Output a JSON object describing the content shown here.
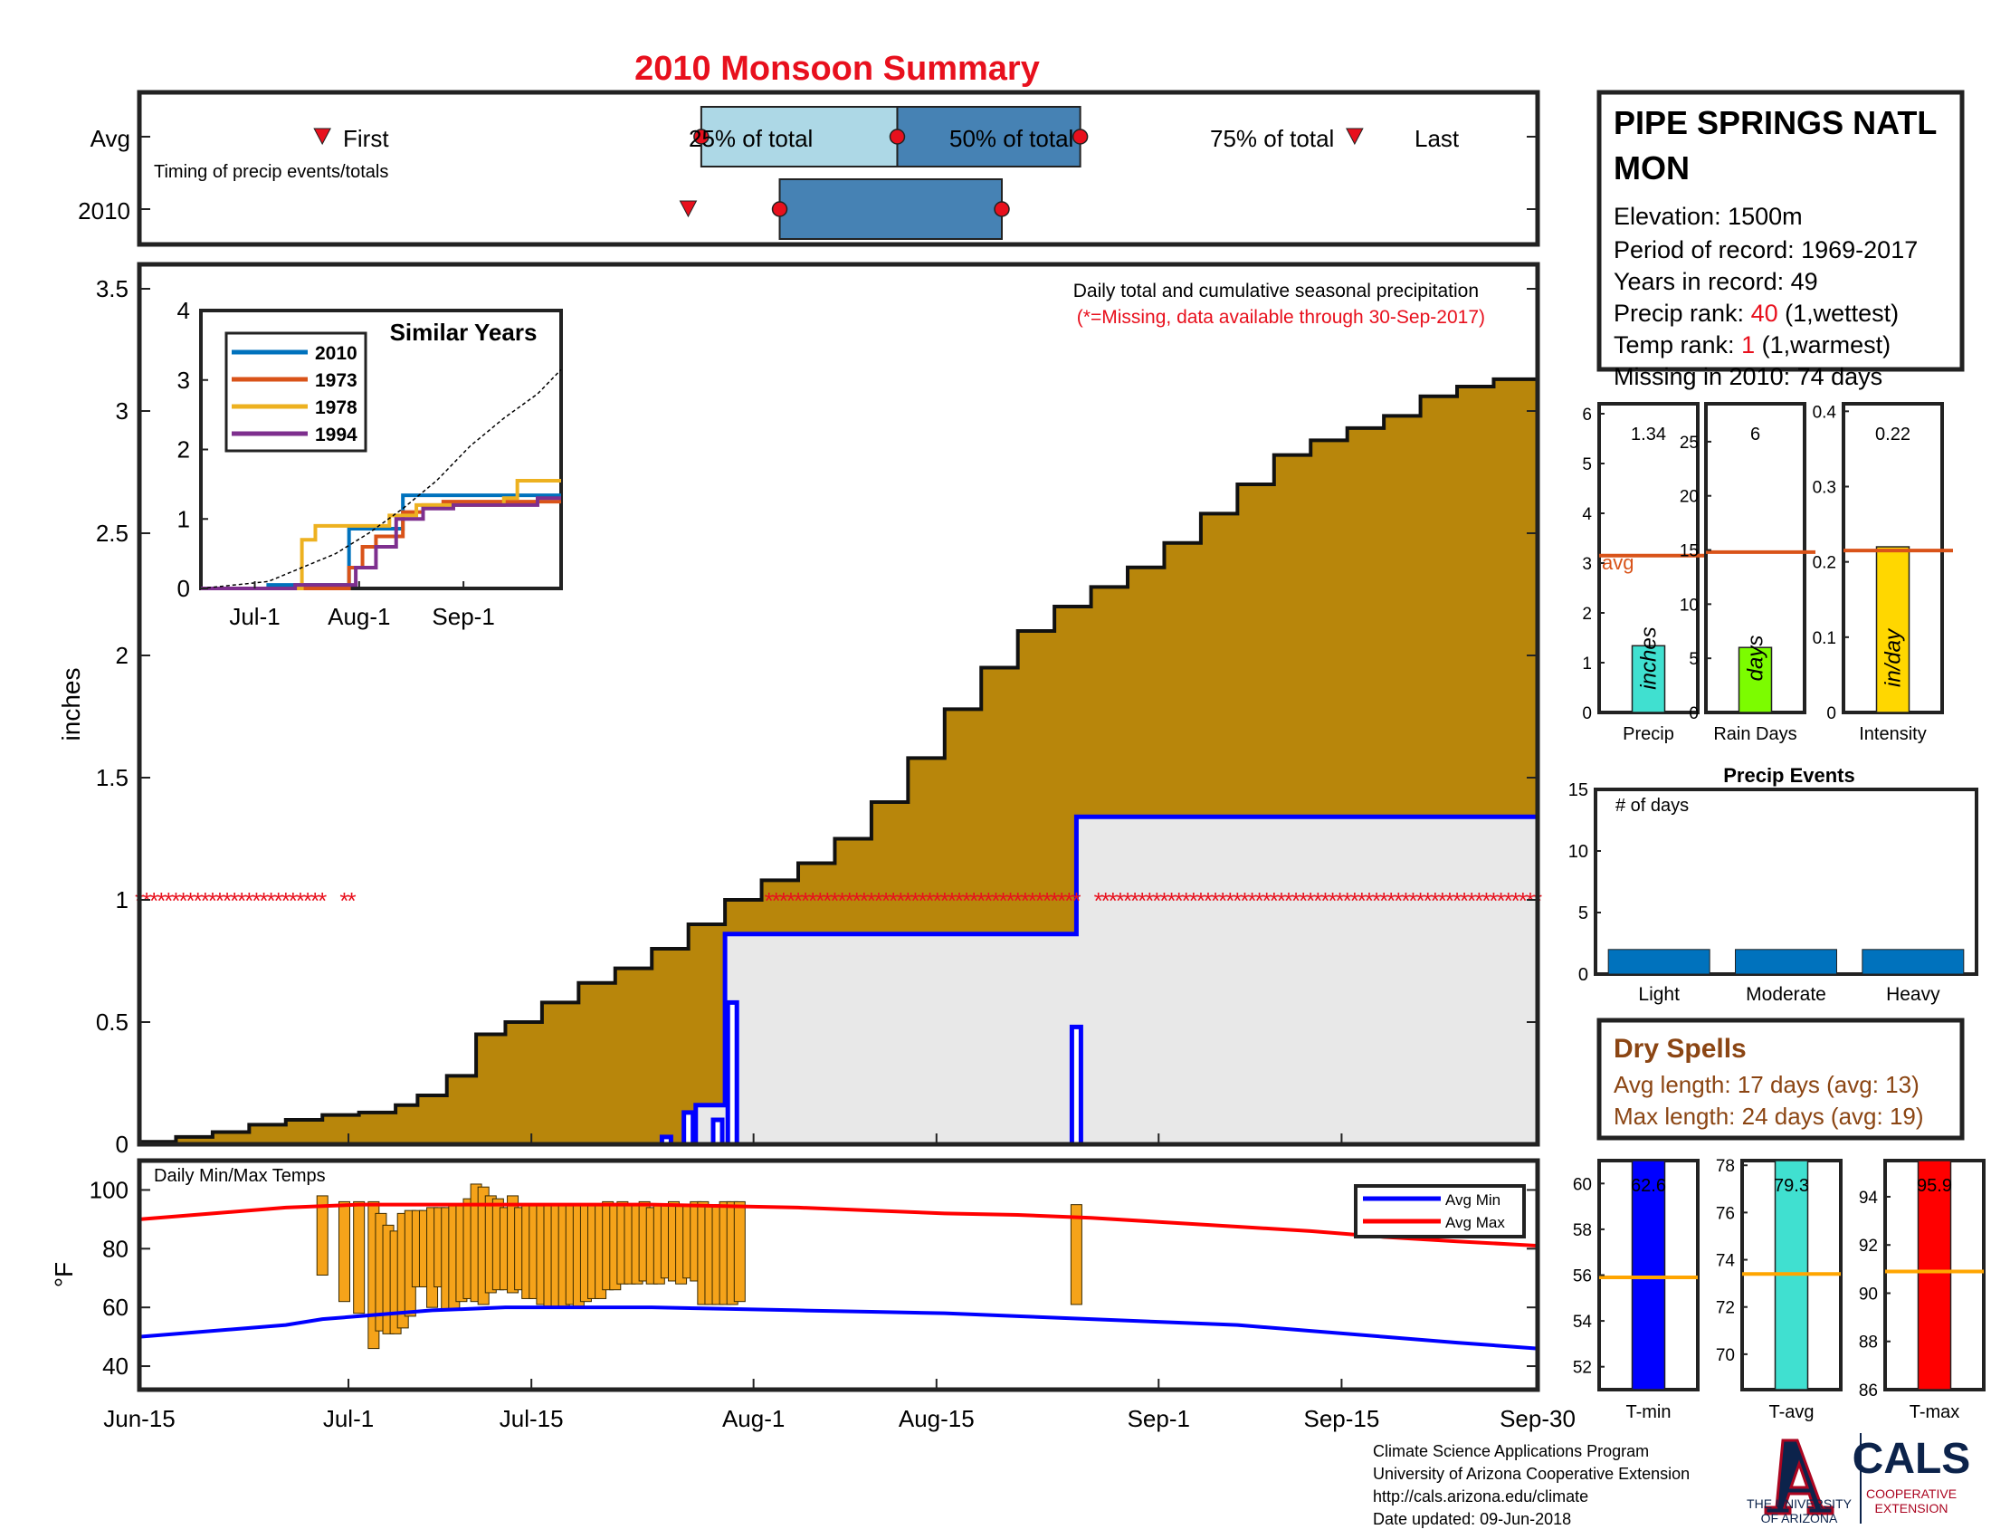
{
  "title": "2010 Monsoon Summary",
  "timing": {
    "row_labels": [
      "Avg",
      "2010"
    ],
    "caption": "Timing of precip events/totals",
    "first_label": "First",
    "last_label": "Last",
    "p25_label": "25% of total",
    "p50_label": "50% of total",
    "p75_label": "75% of total",
    "avg": {
      "first": "Jun-29",
      "p25": "Jul-28",
      "p50": "Aug-12",
      "p75": "Aug-26",
      "last": "Sep-16"
    },
    "y2010": {
      "first": "Jul-27",
      "p25": "Aug-3",
      "p75": "Aug-20"
    }
  },
  "info": {
    "station": "PIPE SPRINGS NATL MON",
    "station_line1": "PIPE SPRINGS NATL",
    "station_line2": "MON",
    "elevation": "Elevation: 1500m",
    "period": "Period of record: 1969-2017",
    "years": "Years in record: 49",
    "precip_rank_prefix": "Precip rank: ",
    "precip_rank_value": "40",
    "precip_rank_suffix": " (1,wettest)",
    "temp_rank_prefix": "Temp rank: ",
    "temp_rank_value": "1",
    "temp_rank_suffix": " (1,warmest)",
    "missing": "Missing in 2010: 74 days"
  },
  "main_panel": {
    "ylabel": "inches",
    "legend_line1": "Daily total and cumulative seasonal precipitation",
    "legend_line2": "(*=Missing, data available through 30-Sep-2017)",
    "inset_title": "Similar Years"
  },
  "temp_panel": {
    "title": "Daily Min/Max Temps",
    "ylabel": "°F",
    "legend_min": "Avg Min",
    "legend_max": "Avg Max"
  },
  "x_axis_ticks": [
    "Jun-15",
    "Jul-1",
    "Jul-15",
    "Aug-1",
    "Aug-15",
    "Sep-1",
    "Sep-15",
    "Sep-30"
  ],
  "precip_bar": {
    "label": "Precip",
    "value": 1.34,
    "value_text": "1.34",
    "avg_text": "avg",
    "unit": "inches",
    "avg": 3.15,
    "ymax": 6.2,
    "color": "#40e0d0"
  },
  "raindays_bar": {
    "label": "Rain Days",
    "value": 6,
    "value_text": "6",
    "unit": "days",
    "avg": 14.8,
    "ymax": 28.5,
    "color": "#7cfc00"
  },
  "intensity_bar": {
    "label": "Intensity",
    "value": 0.22,
    "value_text": "0.22",
    "unit": "in/day",
    "avg": 0.215,
    "ymax": 0.41,
    "color": "#ffd700"
  },
  "precip_events": {
    "title": "Precip Events",
    "ylabel": "# of days",
    "categories": [
      "Light",
      "Moderate",
      "Heavy"
    ],
    "values": [
      2,
      2,
      2
    ],
    "ylim": [
      0,
      15
    ]
  },
  "dry_spells": {
    "title": "Dry Spells",
    "avg_line": "Avg length: 17 days (avg: 13)",
    "max_line": "Max length: 24 days (avg: 19)"
  },
  "temp_bars": [
    {
      "label": "T-min",
      "value": 62.6,
      "value_text": "62.6",
      "avg": 55.9,
      "ylim": [
        51,
        61
      ],
      "ticks": [
        52,
        54,
        56,
        58,
        60
      ],
      "color": "#0000ff"
    },
    {
      "label": "T-avg",
      "value": 79.3,
      "value_text": "79.3",
      "avg": 73.4,
      "ylim": [
        68.5,
        78.2
      ],
      "ticks": [
        70,
        72,
        74,
        76,
        78
      ],
      "color": "#40e0d0"
    },
    {
      "label": "T-max",
      "value": 95.9,
      "value_text": "95.9",
      "avg": 90.9,
      "ylim": [
        86,
        95.5
      ],
      "ticks": [
        86,
        88,
        90,
        92,
        94
      ],
      "color": "#ff0000"
    }
  ],
  "footer": {
    "line1": "Climate Science Applications Program",
    "line2": "University of Arizona Cooperative Extension",
    "line3": "http://cals.arizona.edu/climate",
    "line4": " Date updated: 09-Jun-2018",
    "ua_logo_text1": "THE UNIVERSITY",
    "ua_logo_text2": "OF ARIZONA",
    "cals_logo_text": "CALS",
    "cals_sub1": "COOPERATIVE",
    "cals_sub2": "EXTENSION"
  },
  "chart_data": [
    {
      "type": "area",
      "title": "Daily total and cumulative seasonal precipitation",
      "ylabel": "inches",
      "xlabel": "",
      "x_range": [
        "Jun-15",
        "Sep-30"
      ],
      "ylim": [
        0,
        3.6
      ],
      "yticks": [
        0,
        0.5,
        1,
        1.5,
        2,
        2.5,
        3,
        3.5
      ],
      "series": [
        {
          "name": "avg_cumulative",
          "color": "#b8860b",
          "points": [
            [
              0,
              0.01
            ],
            [
              5,
              0.03
            ],
            [
              10,
              0.05
            ],
            [
              15,
              0.08
            ],
            [
              20,
              0.1
            ],
            [
              25,
              0.12
            ],
            [
              30,
              0.13
            ],
            [
              35,
              0.16
            ],
            [
              38,
              0.2
            ],
            [
              42,
              0.28
            ],
            [
              46,
              0.45
            ],
            [
              50,
              0.5
            ],
            [
              55,
              0.58
            ],
            [
              60,
              0.66
            ],
            [
              65,
              0.72
            ],
            [
              70,
              0.8
            ],
            [
              75,
              0.9
            ],
            [
              80,
              1.0
            ],
            [
              85,
              1.08
            ],
            [
              90,
              1.15
            ],
            [
              95,
              1.25
            ],
            [
              100,
              1.4
            ],
            [
              105,
              1.58
            ],
            [
              110,
              1.78
            ],
            [
              115,
              1.95
            ],
            [
              120,
              2.1
            ],
            [
              125,
              2.2
            ],
            [
              130,
              2.28
            ],
            [
              135,
              2.36
            ],
            [
              140,
              2.46
            ],
            [
              145,
              2.58
            ],
            [
              150,
              2.7
            ],
            [
              155,
              2.82
            ],
            [
              160,
              2.88
            ],
            [
              165,
              2.93
            ],
            [
              170,
              2.98
            ],
            [
              175,
              3.06
            ],
            [
              180,
              3.1
            ],
            [
              185,
              3.13
            ],
            [
              191,
              3.14
            ]
          ]
        },
        {
          "name": "2010_cumulative",
          "color": "#0000ff",
          "points": [
            [
              68,
              0
            ],
            [
              75,
              0
            ],
            [
              75,
              0.01
            ],
            [
              76,
              0.01
            ],
            [
              76,
              0.16
            ],
            [
              80,
              0.16
            ],
            [
              80,
              0.86
            ],
            [
              128,
              0.86
            ],
            [
              128,
              1.34
            ],
            [
              191,
              1.34
            ]
          ]
        }
      ],
      "daily_2010": [
        {
          "day": 72,
          "value": 0.03
        },
        {
          "day": 75,
          "value": 0.13
        },
        {
          "day": 79,
          "value": 0.1
        },
        {
          "day": 81,
          "value": 0.58
        },
        {
          "day": 128,
          "value": 0.48
        }
      ],
      "missing_marker_value": 1,
      "missing_ranges": [
        [
          0,
          25
        ],
        [
          28,
          29
        ],
        [
          86,
          128
        ],
        [
          131,
          191
        ]
      ]
    },
    {
      "type": "line",
      "title": "Similar Years",
      "x_ticks": [
        "Jul-1",
        "Aug-1",
        "Sep-1"
      ],
      "ylim": [
        0,
        4
      ],
      "yticks": [
        0,
        1,
        2,
        3,
        4
      ],
      "series": [
        {
          "name": "2010",
          "color": "#0072bd",
          "points": [
            [
              0,
              0
            ],
            [
              20,
              0
            ],
            [
              20,
              0.05
            ],
            [
              44,
              0.05
            ],
            [
              44,
              0.86
            ],
            [
              60,
              0.86
            ],
            [
              60,
              1.34
            ],
            [
              107,
              1.34
            ]
          ]
        },
        {
          "name": "1973",
          "color": "#d95319",
          "points": [
            [
              0,
              0
            ],
            [
              44,
              0
            ],
            [
              44,
              0.3
            ],
            [
              48,
              0.3
            ],
            [
              48,
              0.6
            ],
            [
              52,
              0.6
            ],
            [
              52,
              0.75
            ],
            [
              60,
              0.75
            ],
            [
              60,
              1.1
            ],
            [
              66,
              1.1
            ],
            [
              66,
              1.2
            ],
            [
              72,
              1.2
            ],
            [
              72,
              1.25
            ],
            [
              107,
              1.25
            ]
          ]
        },
        {
          "name": "1978",
          "color": "#edb120",
          "points": [
            [
              0,
              0
            ],
            [
              30,
              0
            ],
            [
              30,
              0.7
            ],
            [
              34,
              0.7
            ],
            [
              34,
              0.9
            ],
            [
              56,
              0.9
            ],
            [
              56,
              1.05
            ],
            [
              64,
              1.05
            ],
            [
              64,
              1.2
            ],
            [
              90,
              1.2
            ],
            [
              90,
              1.3
            ],
            [
              94,
              1.3
            ],
            [
              94,
              1.55
            ],
            [
              107,
              1.55
            ]
          ]
        },
        {
          "name": "1994",
          "color": "#7e2f8e",
          "points": [
            [
              0,
              0
            ],
            [
              28,
              0
            ],
            [
              28,
              0.05
            ],
            [
              46,
              0.05
            ],
            [
              46,
              0.3
            ],
            [
              52,
              0.3
            ],
            [
              52,
              0.6
            ],
            [
              58,
              0.6
            ],
            [
              58,
              1.0
            ],
            [
              66,
              1.0
            ],
            [
              66,
              1.15
            ],
            [
              75,
              1.15
            ],
            [
              75,
              1.2
            ],
            [
              100,
              1.2
            ],
            [
              100,
              1.3
            ],
            [
              107,
              1.3
            ]
          ]
        },
        {
          "name": "avg",
          "color": "#000000",
          "dashed": true,
          "points": [
            [
              0,
              0
            ],
            [
              10,
              0.05
            ],
            [
              20,
              0.1
            ],
            [
              30,
              0.3
            ],
            [
              40,
              0.5
            ],
            [
              50,
              0.8
            ],
            [
              60,
              1.15
            ],
            [
              70,
              1.55
            ],
            [
              80,
              2.05
            ],
            [
              90,
              2.45
            ],
            [
              100,
              2.8
            ],
            [
              107,
              3.15
            ]
          ]
        }
      ]
    },
    {
      "type": "line",
      "title": "Daily Min/Max Temps",
      "ylabel": "°F",
      "ylim": [
        32,
        110
      ],
      "yticks": [
        40,
        60,
        80,
        100
      ],
      "series": [
        {
          "name": "Avg Min",
          "color": "#0000ff",
          "points": [
            [
              0,
              50
            ],
            [
              10,
              52
            ],
            [
              20,
              54
            ],
            [
              25,
              56
            ],
            [
              30,
              57
            ],
            [
              40,
              59
            ],
            [
              50,
              60
            ],
            [
              60,
              60
            ],
            [
              70,
              60
            ],
            [
              80,
              59.5
            ],
            [
              90,
              59
            ],
            [
              100,
              58.5
            ],
            [
              110,
              58
            ],
            [
              120,
              57
            ],
            [
              130,
              56
            ],
            [
              140,
              55
            ],
            [
              150,
              54
            ],
            [
              160,
              52
            ],
            [
              170,
              50
            ],
            [
              180,
              48
            ],
            [
              191,
              46
            ]
          ]
        },
        {
          "name": "Avg Max",
          "color": "#ff0000",
          "points": [
            [
              0,
              90
            ],
            [
              10,
              92
            ],
            [
              20,
              94
            ],
            [
              30,
              95
            ],
            [
              40,
              95
            ],
            [
              50,
              95
            ],
            [
              60,
              95
            ],
            [
              70,
              95
            ],
            [
              80,
              94.5
            ],
            [
              90,
              94
            ],
            [
              100,
              93
            ],
            [
              110,
              92
            ],
            [
              120,
              91.5
            ],
            [
              130,
              90.5
            ],
            [
              140,
              89
            ],
            [
              150,
              87.5
            ],
            [
              160,
              86
            ],
            [
              170,
              84
            ],
            [
              180,
              82.5
            ],
            [
              191,
              81
            ]
          ]
        }
      ],
      "daily_bars": [
        [
          25,
          71,
          98
        ],
        [
          28,
          62,
          96
        ],
        [
          30,
          58,
          96
        ],
        [
          32,
          46,
          96
        ],
        [
          33,
          52,
          92
        ],
        [
          34,
          51,
          88
        ],
        [
          35,
          51,
          86
        ],
        [
          36,
          53,
          92
        ],
        [
          37,
          57,
          93
        ],
        [
          38,
          67,
          93
        ],
        [
          39,
          67,
          93
        ],
        [
          40,
          60,
          94
        ],
        [
          41,
          67,
          94
        ],
        [
          42,
          59,
          94
        ],
        [
          43,
          59,
          95
        ],
        [
          44,
          62,
          95
        ],
        [
          45,
          63,
          97
        ],
        [
          46,
          62,
          102
        ],
        [
          47,
          61,
          101
        ],
        [
          48,
          65,
          98
        ],
        [
          49,
          66,
          97
        ],
        [
          50,
          66,
          94
        ],
        [
          51,
          65,
          98
        ],
        [
          52,
          66,
          94
        ],
        [
          53,
          63,
          95
        ],
        [
          54,
          63,
          95
        ],
        [
          55,
          61,
          95
        ],
        [
          56,
          60,
          95
        ],
        [
          57,
          60,
          95
        ],
        [
          58,
          60,
          95
        ],
        [
          59,
          61,
          95
        ],
        [
          60,
          60,
          95
        ],
        [
          61,
          62,
          95
        ],
        [
          62,
          63,
          95
        ],
        [
          63,
          63,
          95
        ],
        [
          64,
          66,
          96
        ],
        [
          65,
          66,
          95
        ],
        [
          66,
          68,
          96
        ],
        [
          67,
          68,
          95
        ],
        [
          68,
          68,
          95
        ],
        [
          69,
          69,
          96
        ],
        [
          70,
          68,
          94
        ],
        [
          71,
          68,
          95
        ],
        [
          72,
          70,
          95
        ],
        [
          73,
          69,
          96
        ],
        [
          74,
          68,
          95
        ],
        [
          75,
          70,
          95
        ],
        [
          76,
          69,
          96
        ],
        [
          77,
          61,
          96
        ],
        [
          78,
          61,
          95
        ],
        [
          79,
          61,
          95
        ],
        [
          80,
          61,
          96
        ],
        [
          81,
          61,
          96
        ],
        [
          82,
          62,
          96
        ],
        [
          128,
          61,
          95
        ]
      ]
    }
  ]
}
